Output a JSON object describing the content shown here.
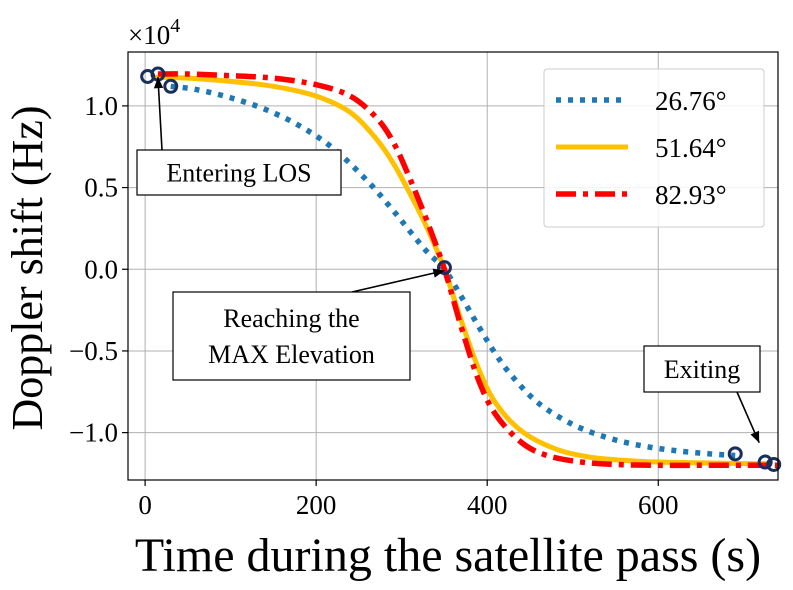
{
  "chart_data": {
    "type": "line",
    "xlabel": "Time during the satellite pass (s)",
    "ylabel": "Doppler shift (Hz)",
    "y_scale_label": "×10",
    "y_scale_exponent": "4",
    "xlim": [
      -20,
      740
    ],
    "ylim": [
      -12.9,
      13.3
    ],
    "xticks": [
      0,
      200,
      400,
      600
    ],
    "xtick_labels": [
      "0",
      "200",
      "400",
      "600"
    ],
    "yticks": [
      10,
      5,
      0,
      -5,
      -10
    ],
    "ytick_labels": [
      "1.0",
      "0.5",
      "0.0",
      "−0.5",
      "−1.0"
    ],
    "grid": true,
    "legend_position": "top-right",
    "series": [
      {
        "name": "26.76°",
        "style": "dotted",
        "color": "#1f77b4",
        "x": [
          30,
          60,
          100,
          140,
          180,
          220,
          260,
          290,
          310,
          330,
          350,
          370,
          390,
          410,
          430,
          460,
          500,
          540,
          580,
          620,
          660,
          690
        ],
        "y": [
          11.2,
          11.0,
          10.5,
          9.8,
          8.8,
          7.4,
          5.4,
          3.6,
          2.3,
          1.05,
          0.0,
          -1.7,
          -3.5,
          -5.2,
          -6.6,
          -8.2,
          -9.5,
          -10.3,
          -10.8,
          -11.1,
          -11.3,
          -11.4
        ]
      },
      {
        "name": "51.64°",
        "style": "solid",
        "color": "#ffc000",
        "x": [
          10,
          50,
          100,
          150,
          200,
          240,
          270,
          290,
          310,
          330,
          350,
          370,
          390,
          410,
          440,
          480,
          520,
          560,
          600,
          650,
          700,
          730
        ],
        "y": [
          11.75,
          11.7,
          11.5,
          11.2,
          10.6,
          9.6,
          8.0,
          6.5,
          4.6,
          2.5,
          0.0,
          -3.2,
          -6.1,
          -8.2,
          -9.9,
          -11.0,
          -11.5,
          -11.7,
          -11.8,
          -11.85,
          -11.9,
          -11.9
        ]
      },
      {
        "name": "82.93°",
        "style": "dashdot",
        "color": "#ff0000",
        "x": [
          15,
          50,
          100,
          150,
          200,
          240,
          270,
          290,
          310,
          330,
          350,
          370,
          390,
          410,
          440,
          470,
          510,
          550,
          600,
          650,
          700,
          740
        ],
        "y": [
          11.95,
          11.95,
          11.85,
          11.7,
          11.3,
          10.6,
          9.3,
          7.8,
          5.5,
          2.9,
          0.0,
          -3.6,
          -6.8,
          -8.9,
          -10.6,
          -11.4,
          -11.8,
          -11.95,
          -12.0,
          -12.0,
          -12.0,
          -12.0
        ]
      }
    ],
    "markers": [
      {
        "x": 3,
        "y": 11.8
      },
      {
        "x": 15,
        "y": 11.95
      },
      {
        "x": 30,
        "y": 11.2
      },
      {
        "x": 350,
        "y": 0.1
      },
      {
        "x": 690,
        "y": -11.3
      },
      {
        "x": 725,
        "y": -11.8
      },
      {
        "x": 735,
        "y": -11.95
      }
    ],
    "annotations": [
      {
        "text_lines": [
          "Entering LOS"
        ],
        "target_x": 15,
        "target_y": 11.95
      },
      {
        "text_lines": [
          "Reaching the",
          "MAX Elevation"
        ],
        "target_x": 350,
        "target_y": 0.1
      },
      {
        "text_lines": [
          "Exiting"
        ],
        "target_x": 718,
        "target_y": -10.8
      }
    ]
  }
}
